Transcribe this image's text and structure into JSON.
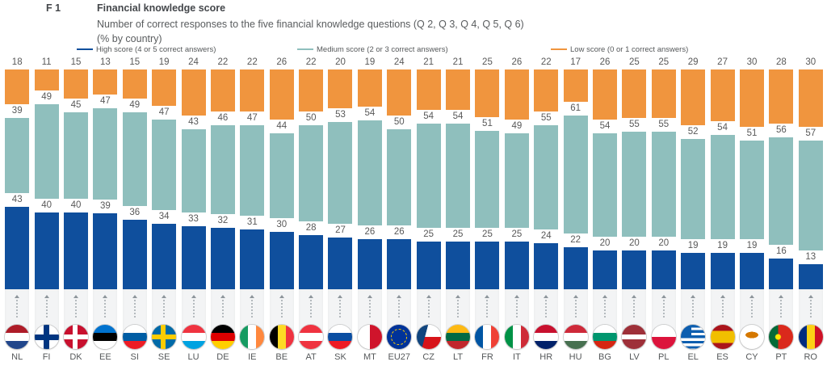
{
  "header": {
    "figure_id": "F 1",
    "title": "Financial knowledge score",
    "subtitle_line1": "Number of correct responses to the five financial knowledge questions (Q 2, Q 3, Q 4, Q 5, Q 6)",
    "subtitle_line2": "(% by country)"
  },
  "legend": [
    {
      "id": "high",
      "label": "High score (4 or 5 correct answers)",
      "color": "#0f4f9d"
    },
    {
      "id": "medium",
      "label": "Medium score (2 or 3 correct answers)",
      "color": "#8fbfbd"
    },
    {
      "id": "low",
      "label": "Low score (0 or 1 correct answers)",
      "color": "#f0953e"
    }
  ],
  "chart_data": {
    "type": "bar",
    "subtype": "100-percent-stacked-column",
    "stack_order_top_to_bottom": [
      "low",
      "medium",
      "high"
    ],
    "value_unit": "percent",
    "categories": [
      "NL",
      "FI",
      "DK",
      "EE",
      "SI",
      "SE",
      "LU",
      "DE",
      "IE",
      "BE",
      "AT",
      "SK",
      "MT",
      "EU27",
      "CZ",
      "LT",
      "FR",
      "IT",
      "HR",
      "HU",
      "BG",
      "LV",
      "PL",
      "EL",
      "ES",
      "CY",
      "PT",
      "RO"
    ],
    "flag_icons": [
      "flag-nl",
      "flag-fi",
      "flag-dk",
      "flag-ee",
      "flag-si",
      "flag-se",
      "flag-lu",
      "flag-de",
      "flag-ie",
      "flag-be",
      "flag-at",
      "flag-sk",
      "flag-mt",
      "flag-eu27",
      "flag-cz",
      "flag-lt",
      "flag-fr",
      "flag-it",
      "flag-hr",
      "flag-hu",
      "flag-bg",
      "flag-lv",
      "flag-pl",
      "flag-el",
      "flag-es",
      "flag-cy",
      "flag-pt",
      "flag-ro"
    ],
    "series": [
      {
        "id": "low",
        "name": "Low score (0 or 1 correct answers)",
        "color": "#f0953e",
        "values": [
          18,
          11,
          15,
          13,
          15,
          19,
          24,
          22,
          22,
          26,
          22,
          20,
          19,
          24,
          21,
          21,
          25,
          26,
          22,
          17,
          26,
          25,
          25,
          29,
          27,
          30,
          28,
          30
        ]
      },
      {
        "id": "medium",
        "name": "Medium score (2 or 3 correct answers)",
        "color": "#8fbfbd",
        "values": [
          39,
          49,
          45,
          47,
          49,
          47,
          43,
          46,
          47,
          44,
          50,
          53,
          54,
          50,
          54,
          54,
          51,
          49,
          55,
          61,
          54,
          55,
          55,
          52,
          54,
          51,
          56,
          57
        ]
      },
      {
        "id": "high",
        "name": "High score (4 or 5 correct answers)",
        "color": "#0f4f9d",
        "values": [
          43,
          40,
          40,
          39,
          36,
          34,
          33,
          32,
          31,
          30,
          28,
          27,
          26,
          26,
          25,
          25,
          25,
          25,
          24,
          22,
          20,
          20,
          20,
          19,
          19,
          19,
          16,
          13
        ]
      }
    ]
  }
}
